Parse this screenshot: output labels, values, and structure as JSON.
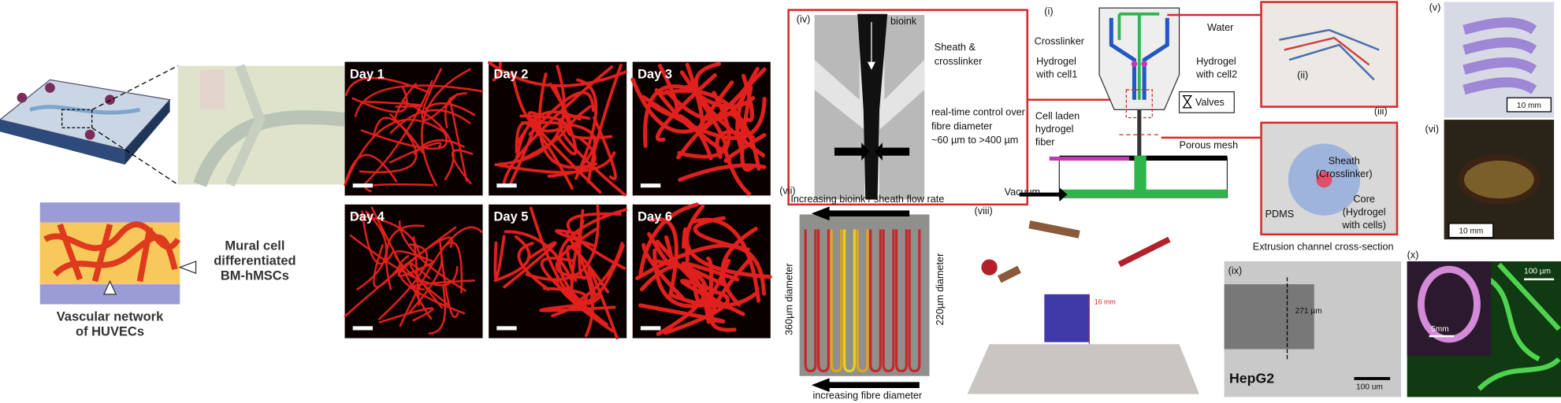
{
  "left_panel": {
    "mural_label": [
      "Mural cell",
      "differentiated",
      "BM-hMSCs"
    ],
    "vascular_label": [
      "Vascular network",
      "of HUVECs"
    ]
  },
  "day_panels": [
    {
      "label": "Day 1"
    },
    {
      "label": "Day 2"
    },
    {
      "label": "Day 3"
    },
    {
      "label": "Day 4"
    },
    {
      "label": "Day 5"
    },
    {
      "label": "Day 6"
    }
  ],
  "panel_iv": {
    "tag": "(iv)",
    "bioink": "bioink",
    "sheath": [
      "Sheath &",
      "crosslinker"
    ],
    "control": [
      "real-time control over",
      "fibre diameter",
      "~60 µm to >400 µm"
    ]
  },
  "panel_i": {
    "tag": "(i)",
    "water": "Water",
    "crosslinker": "Crosslinker",
    "hydrogel1": [
      "Hydrogel",
      "with cell1"
    ],
    "hydrogel2": [
      "Hydrogel",
      "with cell2"
    ],
    "valves": "Valves",
    "fiber": [
      "Cell laden",
      "hydrogel",
      "fiber"
    ],
    "mesh": "Porous mesh",
    "vacuum": "Vacuum"
  },
  "panel_ii": {
    "tag": "(ii)"
  },
  "panel_iii": {
    "tag": "(iii)",
    "sheath": [
      "Sheath",
      "(Crosslinker)"
    ],
    "core": [
      "Core",
      "(Hydrogel",
      "with cells)"
    ],
    "pdms": "PDMS",
    "caption": "Extrusion channel cross-section"
  },
  "panel_v": {
    "tag": "(v)",
    "scale": "10 mm"
  },
  "panel_vi": {
    "tag": "(vi)",
    "scale": "10 mm"
  },
  "panel_vii": {
    "tag": "(vii)",
    "top": "Increasing bioink / sheath flow rate",
    "left": "360µm diameter",
    "right": "220µm diameter",
    "bottom": "increasing fibre diameter"
  },
  "panel_viii": {
    "tag": "(viii)",
    "height": "16 mm"
  },
  "panel_ix": {
    "tag": "(ix)",
    "width": "271 µm",
    "cell": "HepG2",
    "scale": "100 um"
  },
  "panel_x": {
    "tag": "(x)",
    "scale": "100 µm",
    "inset": "5mm"
  }
}
